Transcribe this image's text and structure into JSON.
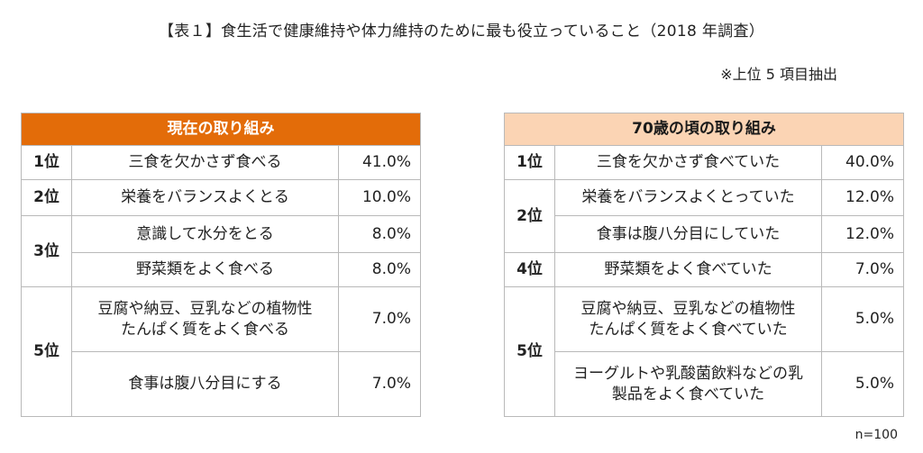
{
  "title": "【表１】食生活で健康維持や体力維持のために最も役立っていること（2018 年調査）",
  "note": "※上位 5 項目抽出",
  "left_table": {
    "header": "現在の取り組み",
    "rows": [
      {
        "rank": "1位",
        "item": "三食を欠かさず食べる",
        "value": "41.0%"
      },
      {
        "rank": "2位",
        "item": "栄養をバランスよくとる",
        "value": "10.0%"
      },
      {
        "rank": "3位",
        "item": "意識して水分をとる",
        "value": "8.0%"
      },
      {
        "item": "野菜類をよく食べる",
        "value": "8.0%"
      },
      {
        "rank": "5位",
        "item": "豆腐や納豆、豆乳などの植物性\nたんぱく質をよく食べる",
        "value": "7.0%"
      },
      {
        "item": "食事は腹八分目にする",
        "value": "7.0%"
      }
    ]
  },
  "right_table": {
    "header": "70歳の頃の取り組み",
    "rows": [
      {
        "rank": "1位",
        "item": "三食を欠かさず食べていた",
        "value": "40.0%"
      },
      {
        "rank": "2位",
        "item": "栄養をバランスよくとっていた",
        "value": "12.0%"
      },
      {
        "item": "食事は腹八分目にしていた",
        "value": "12.0%"
      },
      {
        "rank": "4位",
        "item": "野菜類をよく食べていた",
        "value": "7.0%"
      },
      {
        "rank": "5位",
        "item": "豆腐や納豆、豆乳などの植物性\nたんぱく質をよく食べていた",
        "value": "5.0%"
      },
      {
        "item": "ヨーグルトや乳酸菌飲料などの乳\n製品をよく食べていた",
        "value": "5.0%"
      }
    ]
  },
  "n_label": "n=100"
}
